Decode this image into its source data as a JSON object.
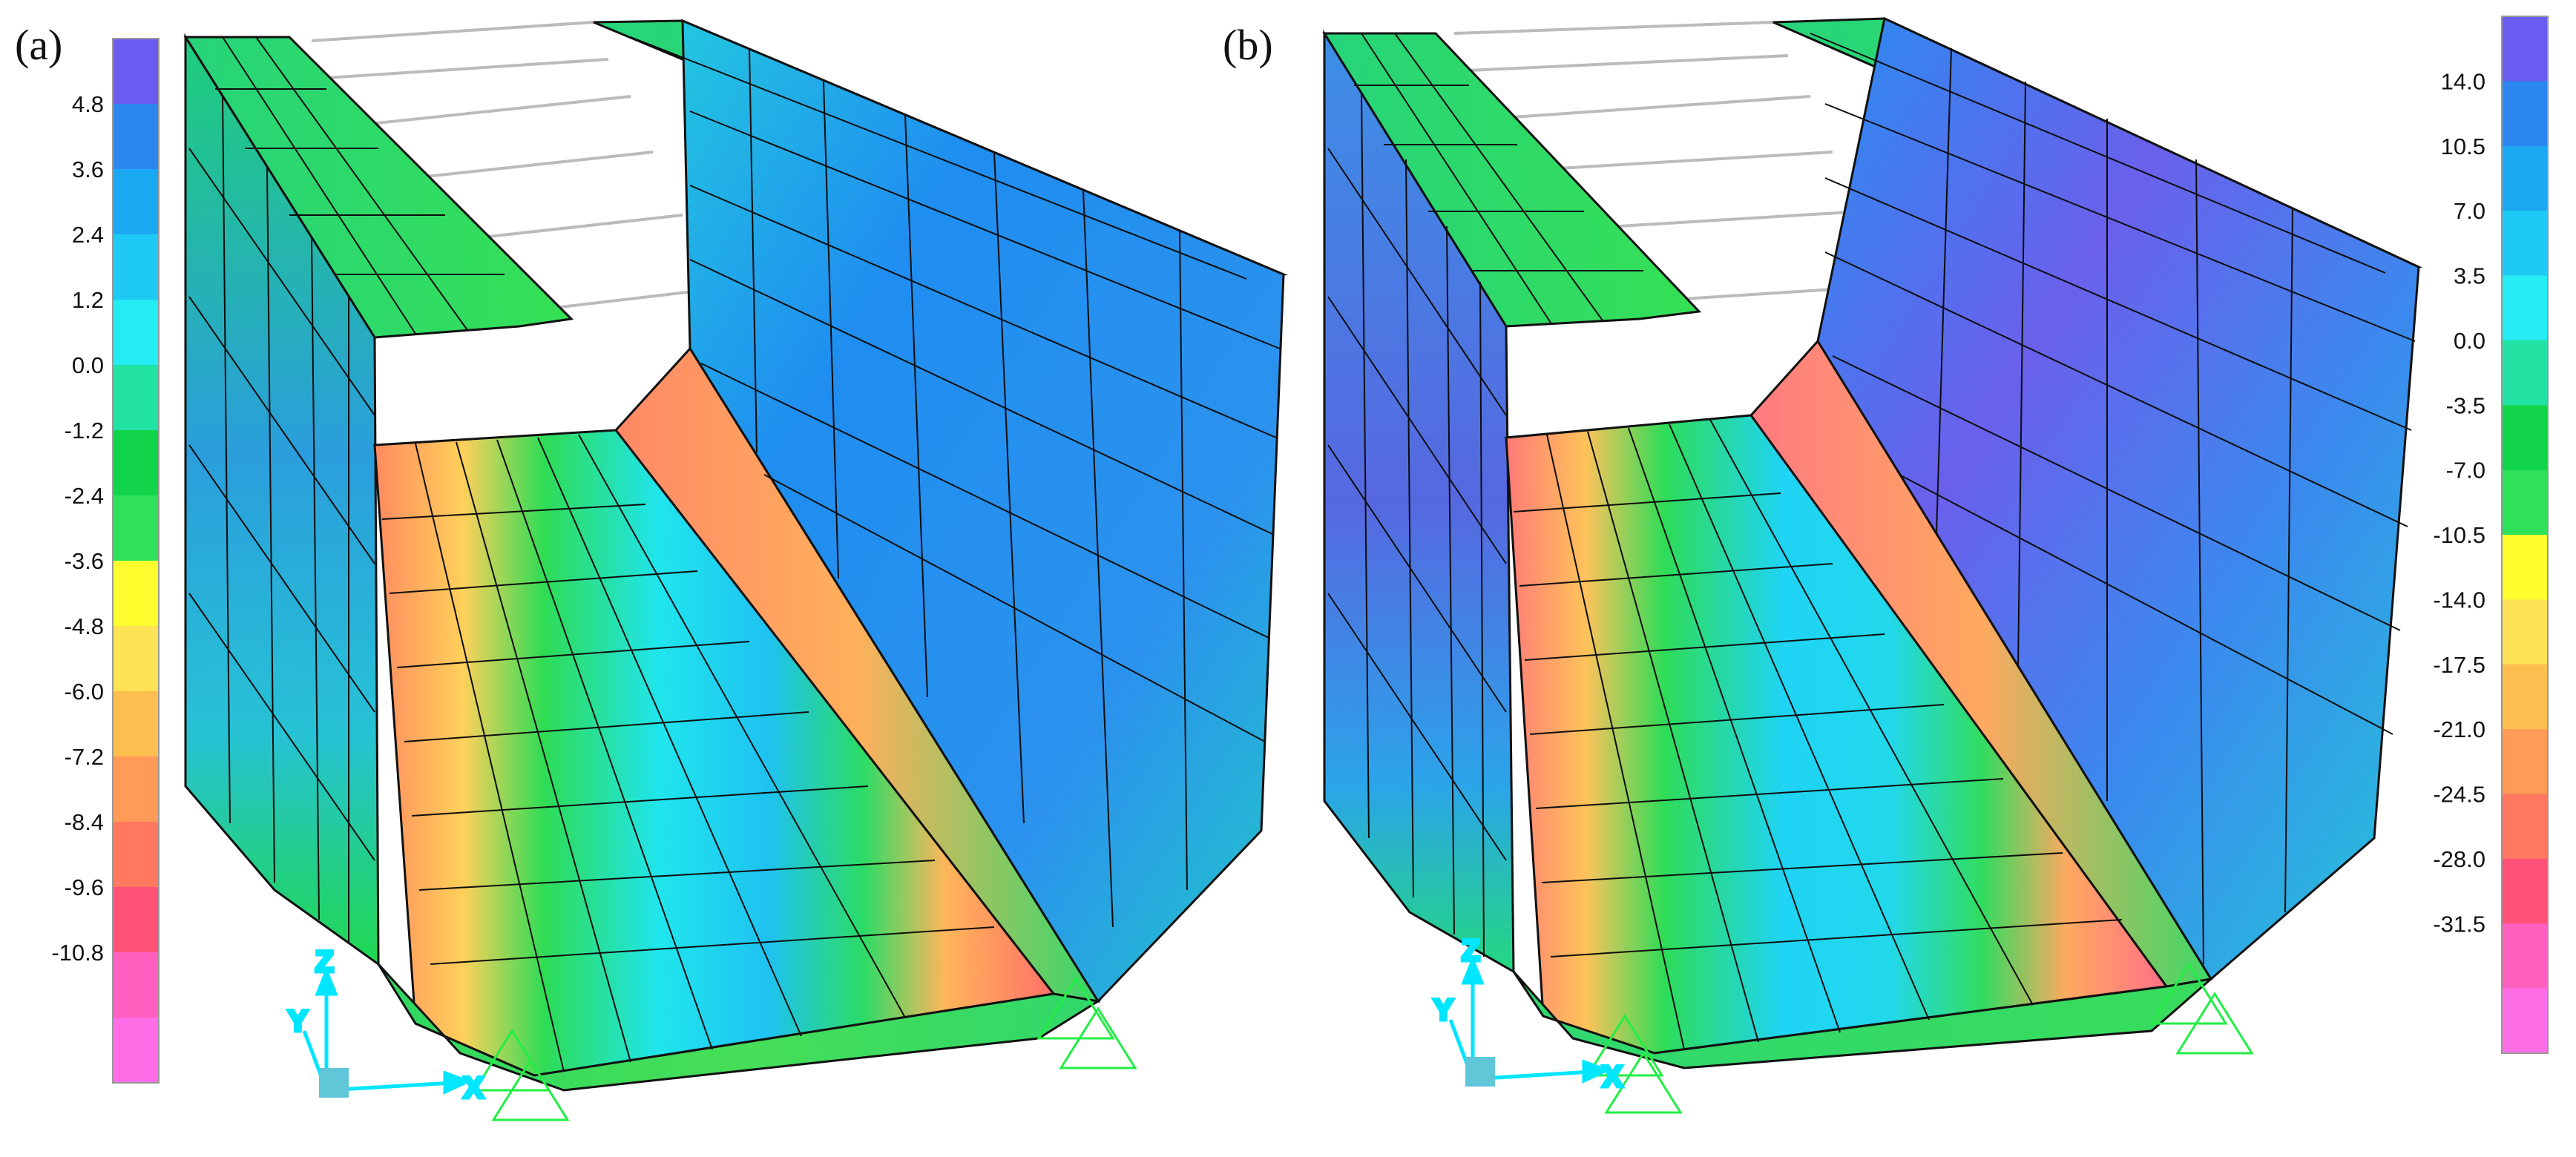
{
  "panels": [
    {
      "label": "(a)",
      "legend_ticks": [
        "4.8",
        "3.6",
        "2.4",
        "1.2",
        "0.0",
        "-1.2",
        "-2.4",
        "-3.6",
        "-4.8",
        "-6.0",
        "-7.2",
        "-8.4",
        "-9.6",
        "-10.8"
      ],
      "axes": {
        "z": "Z",
        "y": "Y",
        "x": "X"
      }
    },
    {
      "label": "(b)",
      "legend_ticks": [
        "14.0",
        "10.5",
        "7.0",
        "3.5",
        "0.0",
        "-3.5",
        "-7.0",
        "-10.5",
        "-14.0",
        "-17.5",
        "-21.0",
        "-24.5",
        "-28.0",
        "-31.5"
      ],
      "axes": {
        "z": "Z",
        "y": "Y",
        "x": "X"
      }
    }
  ],
  "legend_colors": [
    "#6a5cf0",
    "#2c86f0",
    "#1aa8f2",
    "#1ec9f5",
    "#25ecf2",
    "#22e2a4",
    "#12d44a",
    "#2ee05a",
    "#ffff30",
    "#ffe255",
    "#ffbf50",
    "#ff9a58",
    "#ff7860",
    "#ff5078",
    "#ff60c0",
    "#ff6ee6"
  ],
  "colors": {
    "mesh_line": "#0d0d0d",
    "axis_triad": "#00e6ff",
    "supports": "#22ee44",
    "rigid_link": "#bbbbbb"
  }
}
